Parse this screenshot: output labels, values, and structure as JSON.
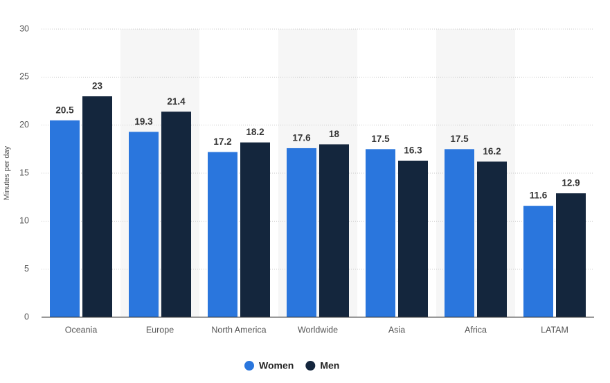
{
  "chart_data": {
    "type": "bar",
    "y_label": "Minutes per day",
    "categories": [
      "Oceania",
      "Europe",
      "North America",
      "Worldwide",
      "Asia",
      "Africa",
      "LATAM"
    ],
    "series": [
      {
        "name": "Women",
        "color": "#2a76dd",
        "values": [
          20.5,
          19.3,
          17.2,
          17.6,
          17.5,
          17.5,
          11.6
        ]
      },
      {
        "name": "Men",
        "color": "#14263d",
        "values": [
          23,
          21.4,
          18.2,
          18,
          16.3,
          16.2,
          12.9
        ]
      }
    ],
    "ylim": [
      0,
      30
    ],
    "yticks": [
      0,
      5,
      10,
      15,
      20,
      25,
      30
    ],
    "grid": true
  }
}
